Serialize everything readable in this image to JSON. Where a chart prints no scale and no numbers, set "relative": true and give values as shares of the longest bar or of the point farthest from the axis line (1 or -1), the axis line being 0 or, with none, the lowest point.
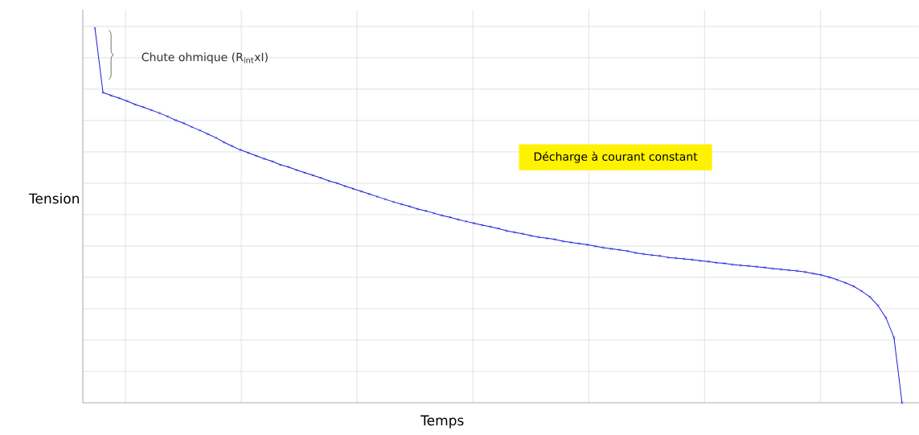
{
  "chart_data": {
    "type": "line",
    "relative": true,
    "xlabel": "Temps",
    "ylabel": "Tension",
    "annotations": [
      "Chute ohmique (R$_{int}$xI)",
      "Décharge à courant constant"
    ],
    "categories": [
      null,
      null,
      null,
      null,
      null,
      null,
      null,
      null,
      null,
      null,
      null,
      null,
      null,
      null,
      null,
      null,
      null,
      null,
      null,
      null,
      null,
      null,
      null,
      null,
      null,
      null,
      null,
      null,
      null,
      null,
      null,
      null,
      null,
      null,
      null,
      null,
      null,
      null,
      null,
      null,
      null,
      null,
      null,
      null,
      null,
      null,
      null,
      null,
      null,
      null,
      null,
      null,
      null,
      null,
      null,
      null,
      null,
      null,
      null,
      null,
      null,
      null,
      null,
      null,
      null,
      null,
      null,
      null,
      null,
      null,
      null,
      null,
      null,
      null,
      null,
      null,
      null,
      null,
      null,
      null,
      null,
      null,
      null,
      null,
      null,
      null,
      null,
      null,
      null,
      null,
      null,
      null,
      null,
      null,
      null,
      null,
      null,
      null,
      null,
      null,
      null
    ],
    "values": [
      1.0,
      0.828,
      0.82,
      0.813,
      0.805,
      0.796,
      0.789,
      0.781,
      0.773,
      0.764,
      0.754,
      0.746,
      0.736,
      0.727,
      0.717,
      0.707,
      0.695,
      0.685,
      0.675,
      0.667,
      0.659,
      0.651,
      0.644,
      0.635,
      0.629,
      0.621,
      0.614,
      0.607,
      0.6,
      0.592,
      0.586,
      0.578,
      0.571,
      0.564,
      0.557,
      0.55,
      0.543,
      0.536,
      0.53,
      0.524,
      0.517,
      0.512,
      0.506,
      0.5,
      0.495,
      0.489,
      0.484,
      0.479,
      0.474,
      0.47,
      0.465,
      0.459,
      0.455,
      0.451,
      0.446,
      0.442,
      0.439,
      0.436,
      0.431,
      0.428,
      0.425,
      0.422,
      0.418,
      0.414,
      0.411,
      0.408,
      0.405,
      0.4,
      0.397,
      0.394,
      0.392,
      0.388,
      0.386,
      0.384,
      0.382,
      0.379,
      0.377,
      0.374,
      0.372,
      0.369,
      0.367,
      0.365,
      0.363,
      0.361,
      0.358,
      0.356,
      0.354,
      0.352,
      0.349,
      0.345,
      0.341,
      0.335,
      0.328,
      0.32,
      0.311,
      0.298,
      0.283,
      0.26,
      0.227,
      0.174,
      0.0
    ],
    "color": "#1c1cdc",
    "marker": "cross",
    "grid": true,
    "tick_labels": false
  }
}
